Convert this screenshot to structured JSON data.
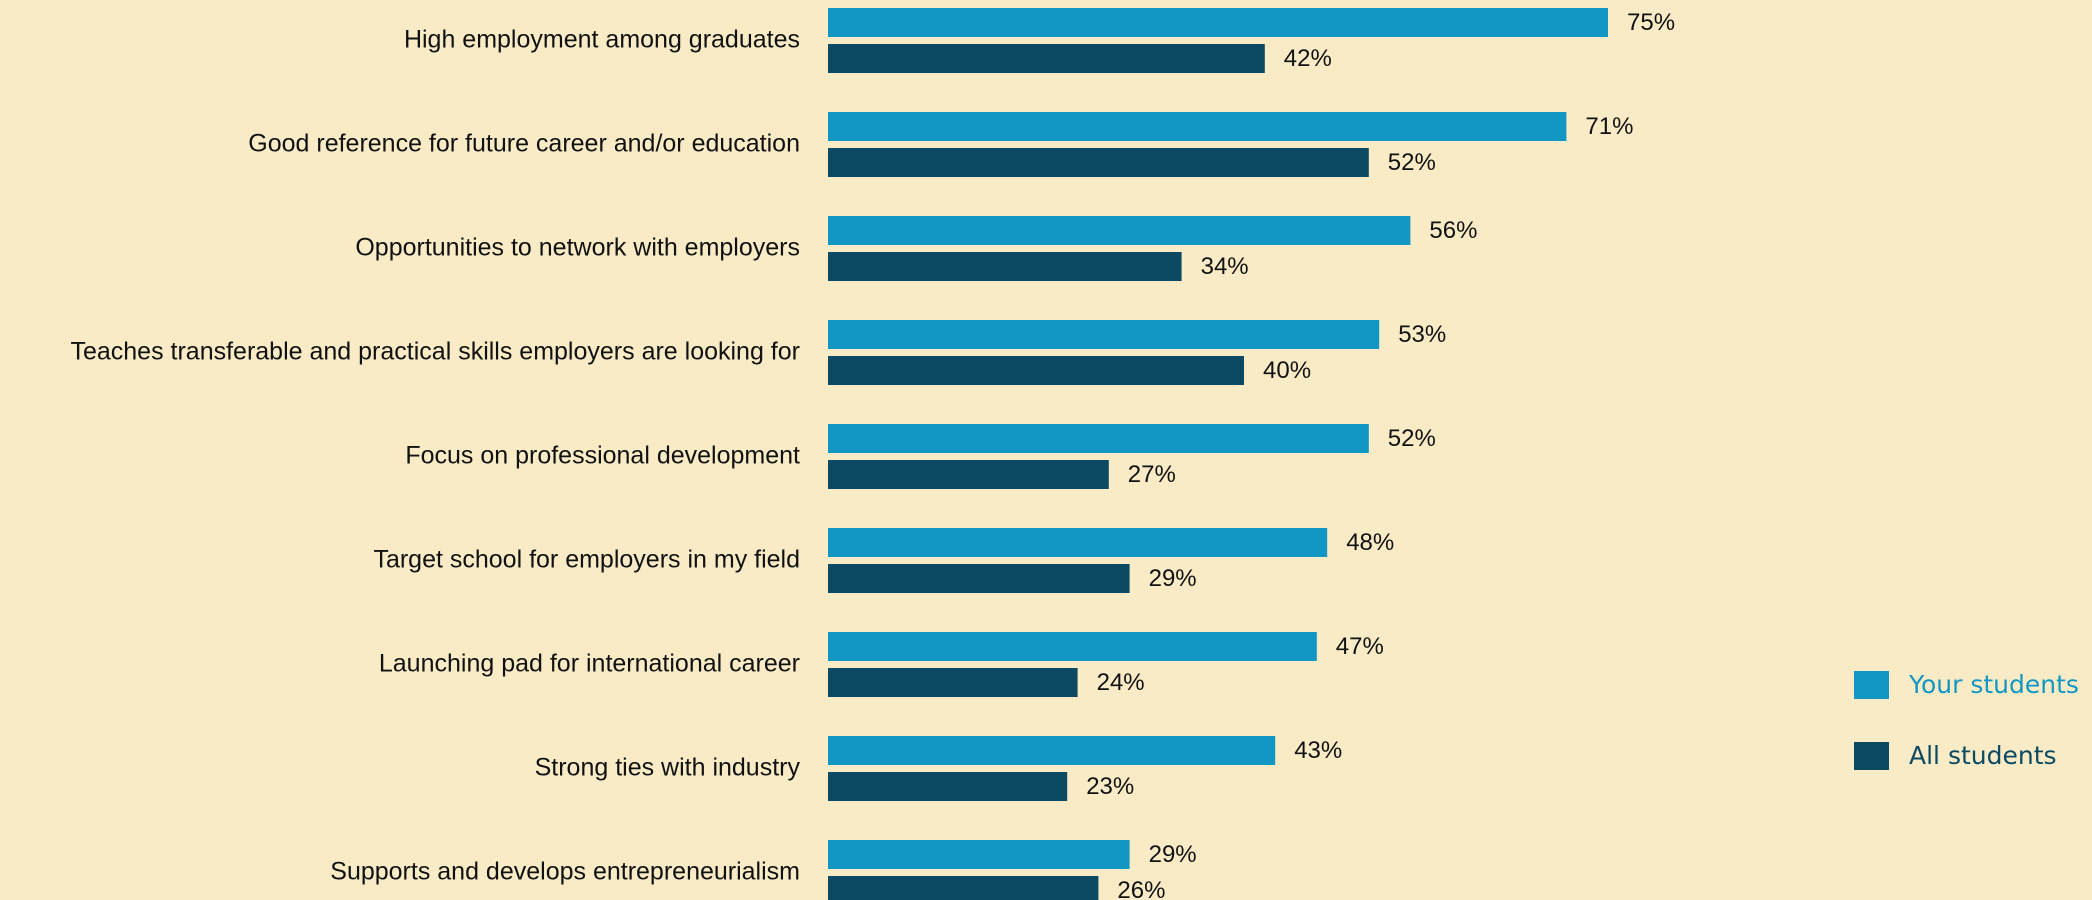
{
  "chart_data": {
    "type": "barh",
    "categories": [
      "High employment among graduates",
      "Good reference for future career and/or education",
      "Opportunities to network with employers",
      "Teaches transferable and practical skills employers are looking for",
      "Focus on professional development",
      "Target school for employers in my field",
      "Launching pad for international career",
      "Strong ties with industry",
      "Supports and develops entrepreneurialism"
    ],
    "series": [
      {
        "name": "Your students",
        "color": "#1297c4",
        "values": [
          75,
          71,
          56,
          53,
          52,
          48,
          47,
          43,
          29
        ],
        "value_labels": [
          "75%",
          "71%",
          "56%",
          "53%",
          "52%",
          "48%",
          "47%",
          "43%",
          "29%"
        ]
      },
      {
        "name": "All students",
        "color": "#0b4a62",
        "values": [
          42,
          52,
          34,
          40,
          27,
          29,
          24,
          23,
          26
        ],
        "value_labels": [
          "42%",
          "52%",
          "34%",
          "40%",
          "27%",
          "29%",
          "24%",
          "23%",
          "26%"
        ]
      }
    ],
    "legend": "right"
  }
}
